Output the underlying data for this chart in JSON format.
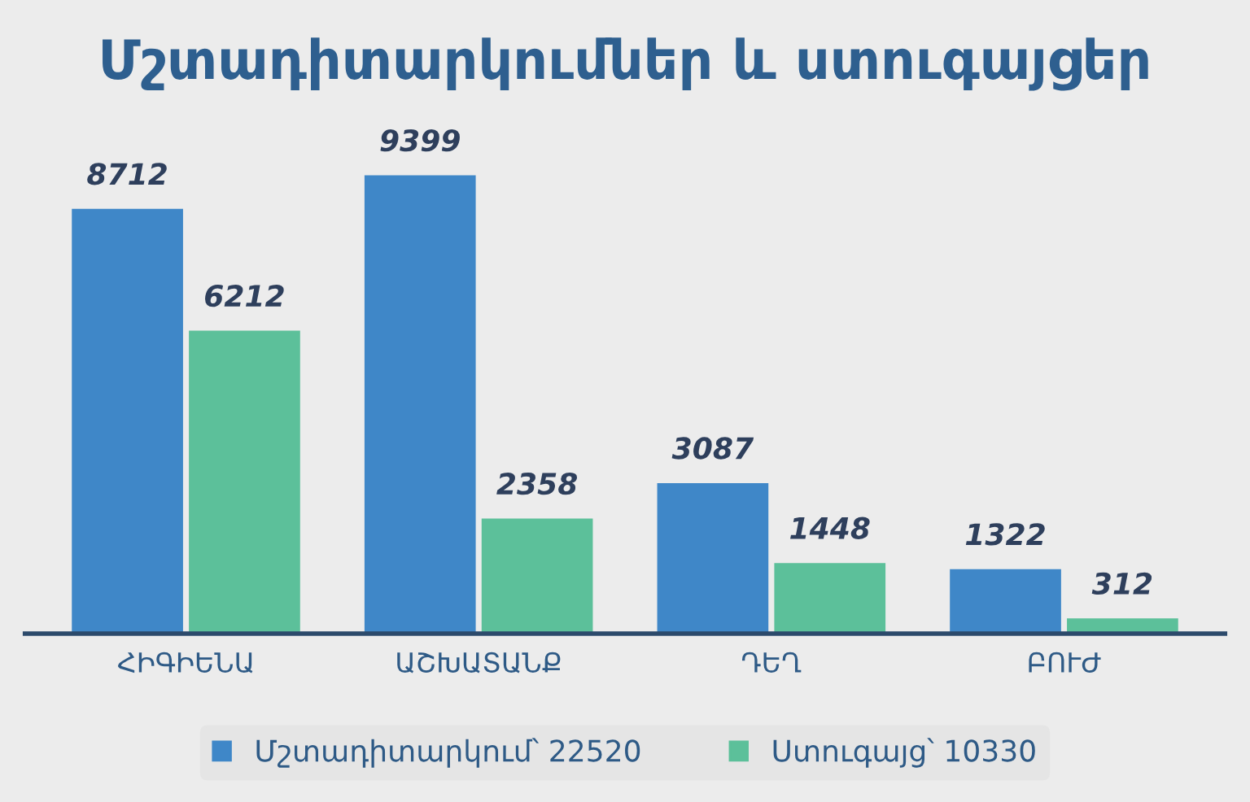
{
  "chart_data": {
    "type": "bar",
    "title": "Մշտադիտարկումներ և ստուգայցեր",
    "categories": [
      "ՀԻԳԻԵՆԱ",
      "ԱՇԽԱՏԱՆՔ",
      "ԴԵՂ",
      "ԲՈՒԺ"
    ],
    "series": [
      {
        "name": "Մշտադիտարկում՝ 22520",
        "color": "#3f87c8",
        "values": [
          8712,
          9399,
          3087,
          1322
        ]
      },
      {
        "name": "Ստուգայց՝ 10330",
        "color": "#5cc09a",
        "values": [
          6212,
          2358,
          1448,
          312
        ]
      }
    ],
    "data_labels": true,
    "legend": "bottom",
    "grid": false
  }
}
